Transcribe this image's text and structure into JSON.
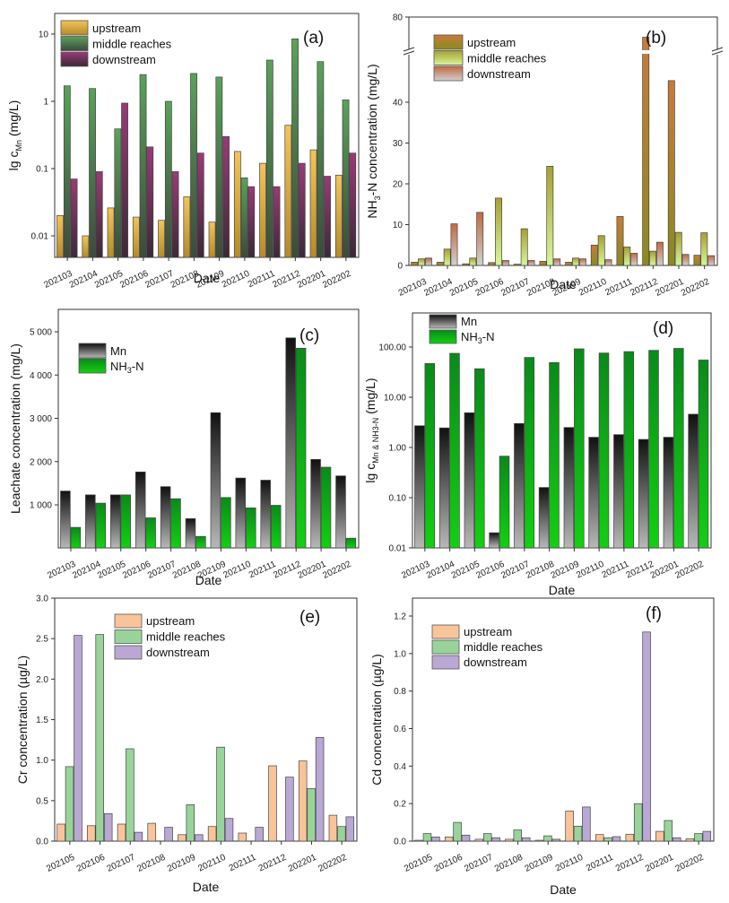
{
  "chart_data": [
    {
      "id": "a",
      "panel_label": "(a)",
      "type": "bar",
      "scale": "log",
      "categories": [
        "202103",
        "202104",
        "202105",
        "202106",
        "202107",
        "202108",
        "202109",
        "202110",
        "202111",
        "202112",
        "202201",
        "202202"
      ],
      "series": [
        {
          "name": "upstream",
          "values": [
            0.02,
            0.01,
            0.026,
            0.019,
            0.017,
            0.038,
            0.016,
            0.18,
            0.12,
            0.44,
            0.19,
            0.08
          ]
        },
        {
          "name": "middle reaches",
          "values": [
            1.7,
            1.55,
            0.39,
            2.5,
            1.0,
            2.6,
            2.3,
            0.073,
            4.1,
            8.5,
            3.9,
            1.05
          ]
        },
        {
          "name": "downstream",
          "values": [
            0.07,
            0.09,
            0.94,
            0.21,
            0.09,
            0.17,
            0.3,
            0.054,
            0.054,
            0.12,
            0.077,
            0.17
          ]
        }
      ],
      "colors": [
        [
          "#f2c45a",
          "#b58a2a"
        ],
        [
          "#5aa25a",
          "#3d4a3d"
        ],
        [
          "#9a3a78",
          "#3a2a35"
        ]
      ],
      "xlabel": "Date",
      "ylabel": "lg c_Mn (mg/L)",
      "ylabel_main": "lg c",
      "ylabel_sub": "Mn",
      "ylabel_tail": " (mg/L)",
      "ylim": [
        0.005,
        20
      ],
      "yticks": [
        0.01,
        0.1,
        1,
        10
      ],
      "ytick_labels": [
        "0.01",
        "0.1",
        "1",
        "10"
      ],
      "legend": "top-left"
    },
    {
      "id": "b",
      "panel_label": "(b)",
      "type": "bar",
      "scale": "linear-broken",
      "categories": [
        "202103",
        "202104",
        "202105",
        "202106",
        "202107",
        "202108",
        "202109",
        "202110",
        "202111",
        "202112",
        "202201",
        "202202"
      ],
      "series": [
        {
          "name": "upstream",
          "values": [
            0.8,
            0.8,
            0.4,
            0.7,
            0.3,
            1.0,
            0.8,
            5.0,
            12.0,
            75.0,
            45.3,
            2.5
          ]
        },
        {
          "name": "middle reaches",
          "values": [
            1.6,
            4.0,
            1.8,
            16.5,
            9.0,
            24.3,
            1.8,
            7.3,
            4.5,
            3.5,
            8.1,
            8.0
          ]
        },
        {
          "name": "downstream",
          "values": [
            1.8,
            10.2,
            13.0,
            1.2,
            1.2,
            1.6,
            1.6,
            1.4,
            3.0,
            5.7,
            2.7,
            2.4
          ]
        }
      ],
      "colors": [
        [
          "#c87a3a",
          "#8a8a20"
        ],
        [
          "#a6a030",
          "#d8f59a"
        ],
        [
          "#c06a40",
          "#d0d0d0"
        ]
      ],
      "xlabel": "Date",
      "ylabel": "NH3-N concentration (mg/L)",
      "ylabel_pre": "NH",
      "ylabel_sub": "3",
      "ylabel_tail": "-N concentration (mg/L)",
      "ylim": [
        0,
        80
      ],
      "axis_break": [
        47,
        70
      ],
      "yticks": [
        0,
        10,
        20,
        30,
        40,
        80
      ],
      "ytick_labels": [
        "0",
        "10",
        "20",
        "30",
        "40",
        "80"
      ],
      "legend": "top-left"
    },
    {
      "id": "c",
      "panel_label": "(c)",
      "type": "bar",
      "scale": "linear",
      "categories": [
        "202103",
        "202104",
        "202105",
        "202106",
        "202107",
        "202108",
        "202109",
        "202110",
        "202111",
        "202112",
        "202201",
        "202202"
      ],
      "series": [
        {
          "name": "Mn",
          "values": [
            1320,
            1230,
            1230,
            1760,
            1420,
            680,
            3130,
            1620,
            1570,
            4860,
            2050,
            1670
          ]
        },
        {
          "name": "NH3-N",
          "values": [
            480,
            1040,
            1230,
            700,
            1140,
            270,
            1170,
            930,
            990,
            4620,
            1870,
            230
          ]
        }
      ],
      "legend_labels": [
        {
          "pre": "Mn",
          "sub": "",
          "tail": ""
        },
        {
          "pre": "NH",
          "sub": "3",
          "tail": "-N"
        }
      ],
      "colors": [
        [
          "#111111",
          "#b8b8b8"
        ],
        [
          "#0a8a1a",
          "#12d012"
        ]
      ],
      "xlabel": "Date",
      "ylabel": "Leachate concentration (mg/L)",
      "ylim": [
        0,
        5500
      ],
      "yticks": [
        1000,
        2000,
        3000,
        4000,
        5000
      ],
      "ytick_labels": [
        "1 000",
        "2 000",
        "3 000",
        "4 000",
        "5 000"
      ],
      "legend": "top-left"
    },
    {
      "id": "d",
      "panel_label": "(d)",
      "type": "bar",
      "scale": "log",
      "categories": [
        "202103",
        "202104",
        "202105",
        "202106",
        "202107",
        "202108",
        "202109",
        "202110",
        "202111",
        "202112",
        "202201",
        "202202"
      ],
      "series": [
        {
          "name": "Mn",
          "values": [
            2.7,
            2.45,
            4.9,
            0.02,
            3.0,
            0.16,
            2.5,
            1.6,
            1.8,
            1.45,
            1.6,
            4.6
          ]
        },
        {
          "name": "NH3-N",
          "values": [
            47,
            75,
            37,
            0.67,
            62,
            49,
            92,
            76,
            81,
            86,
            94,
            55
          ]
        }
      ],
      "legend_labels": [
        {
          "pre": "Mn",
          "sub": "",
          "tail": ""
        },
        {
          "pre": "NH",
          "sub": "3",
          "tail": "-N"
        }
      ],
      "colors": [
        [
          "#111111",
          "#b8b8b8"
        ],
        [
          "#0a8a1a",
          "#12d012"
        ]
      ],
      "xlabel": "Date",
      "ylabel": "lg c_Mn & NH3-N (mg/L)",
      "ylabel_main": "lg c",
      "ylabel_sub": "Mn & NH3-N",
      "ylabel_tail": " (mg/L)",
      "ylim": [
        0.01,
        300
      ],
      "yticks": [
        0.01,
        0.1,
        1,
        10,
        100
      ],
      "ytick_labels": [
        "0.01",
        "0.10",
        "1.00",
        "10.00",
        "100.00"
      ],
      "legend": "top-left"
    },
    {
      "id": "e",
      "panel_label": "(e)",
      "type": "bar",
      "scale": "linear",
      "categories": [
        "202105",
        "202106",
        "202107",
        "202108",
        "202109",
        "202110",
        "202111",
        "202112",
        "202201",
        "202202"
      ],
      "series": [
        {
          "name": "upstream",
          "values": [
            0.21,
            0.19,
            0.21,
            0.22,
            0.08,
            0.18,
            0.1,
            0.93,
            0.99,
            0.32
          ]
        },
        {
          "name": "middle reaches",
          "values": [
            0.92,
            2.55,
            1.14,
            0,
            0.45,
            1.16,
            0,
            0,
            0.65,
            0.18
          ]
        },
        {
          "name": "downstream",
          "values": [
            2.54,
            0.34,
            0.11,
            0.17,
            0.08,
            0.28,
            0.17,
            0.79,
            1.28,
            0.3
          ]
        }
      ],
      "colors": [
        [
          "#f9c49a",
          "#f9c49a"
        ],
        [
          "#98d49a",
          "#98d49a"
        ],
        [
          "#b9a8d4",
          "#b9a8d4"
        ]
      ],
      "xlabel": "Date",
      "ylabel": "Cr concentration  (µg/L)",
      "ylim": [
        0,
        3.0
      ],
      "yticks": [
        0,
        0.5,
        1.0,
        1.5,
        2.0,
        2.5,
        3.0
      ],
      "ytick_labels": [
        "0.0",
        "0.5",
        "1.0",
        "1.5",
        "2.0",
        "2.5",
        "3.0"
      ],
      "legend": "top-center"
    },
    {
      "id": "f",
      "panel_label": "(f)",
      "type": "bar",
      "scale": "linear",
      "categories": [
        "202105",
        "202106",
        "202107",
        "202108",
        "202109",
        "202110",
        "202111",
        "202112",
        "202201",
        "202202"
      ],
      "series": [
        {
          "name": "upstream",
          "values": [
            0.005,
            0.022,
            0.01,
            0.01,
            0.005,
            0.16,
            0.035,
            0.037,
            0.052,
            0.013
          ]
        },
        {
          "name": "middle reaches",
          "values": [
            0.04,
            0.1,
            0.04,
            0.06,
            0.028,
            0.08,
            0.018,
            0.2,
            0.11,
            0.04
          ]
        },
        {
          "name": "downstream",
          "values": [
            0.022,
            0.032,
            0.018,
            0.018,
            0.01,
            0.182,
            0.024,
            1.115,
            0.018,
            0.052
          ]
        }
      ],
      "colors": [
        [
          "#f9c49a",
          "#f9c49a"
        ],
        [
          "#98d49a",
          "#98d49a"
        ],
        [
          "#b9a8d4",
          "#b9a8d4"
        ]
      ],
      "xlabel": "Date",
      "ylabel": "Cd concentration (µg/L)",
      "ylim": [
        0,
        1.3
      ],
      "yticks": [
        0,
        0.2,
        0.4,
        0.6,
        0.8,
        1.0,
        1.2
      ],
      "ytick_labels": [
        "0.0",
        "0.2",
        "0.4",
        "0.6",
        "0.8",
        "1.0",
        "1.2"
      ],
      "legend": "top-left"
    }
  ]
}
